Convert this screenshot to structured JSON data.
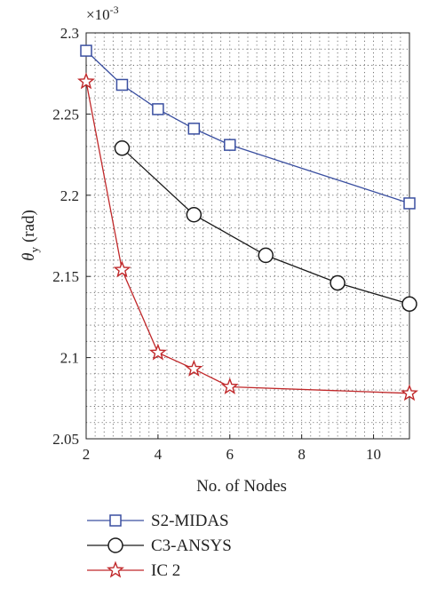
{
  "chart_data": {
    "type": "line",
    "xlabel": "No. of Nodes",
    "ylabel_symbol": "θ",
    "ylabel_subscript": "y",
    "ylabel_unit": "(rad)",
    "scale_note": "×10-3",
    "scale_note_base": "×10",
    "scale_note_exp": "-3",
    "xlim": [
      2,
      11
    ],
    "ylim": [
      2.05,
      2.3
    ],
    "xticks": [
      2,
      4,
      6,
      8,
      10
    ],
    "yticks": [
      2.05,
      2.1,
      2.15,
      2.2,
      2.25,
      2.3
    ],
    "ytick_labels": [
      "2.05",
      "2.1",
      "2.15",
      "2.2",
      "2.25",
      "2.3"
    ],
    "grid": true,
    "legend_position": "below",
    "series": [
      {
        "name": "S2-MIDAS",
        "color": "#3a4fa0",
        "marker": "square",
        "x": [
          2,
          3,
          4,
          5,
          6,
          11
        ],
        "y": [
          2.289,
          2.268,
          2.253,
          2.241,
          2.231,
          2.195
        ]
      },
      {
        "name": "C3-ANSYS",
        "color": "#1a1a1a",
        "marker": "circle",
        "x": [
          3,
          5,
          7,
          9,
          11
        ],
        "y": [
          2.229,
          2.188,
          2.163,
          2.146,
          2.133
        ]
      },
      {
        "name": "IC 2",
        "color": "#c0282a",
        "marker": "star",
        "x": [
          2,
          3,
          4,
          5,
          6,
          11
        ],
        "y": [
          2.27,
          2.154,
          2.103,
          2.093,
          2.082,
          2.078
        ]
      }
    ]
  }
}
